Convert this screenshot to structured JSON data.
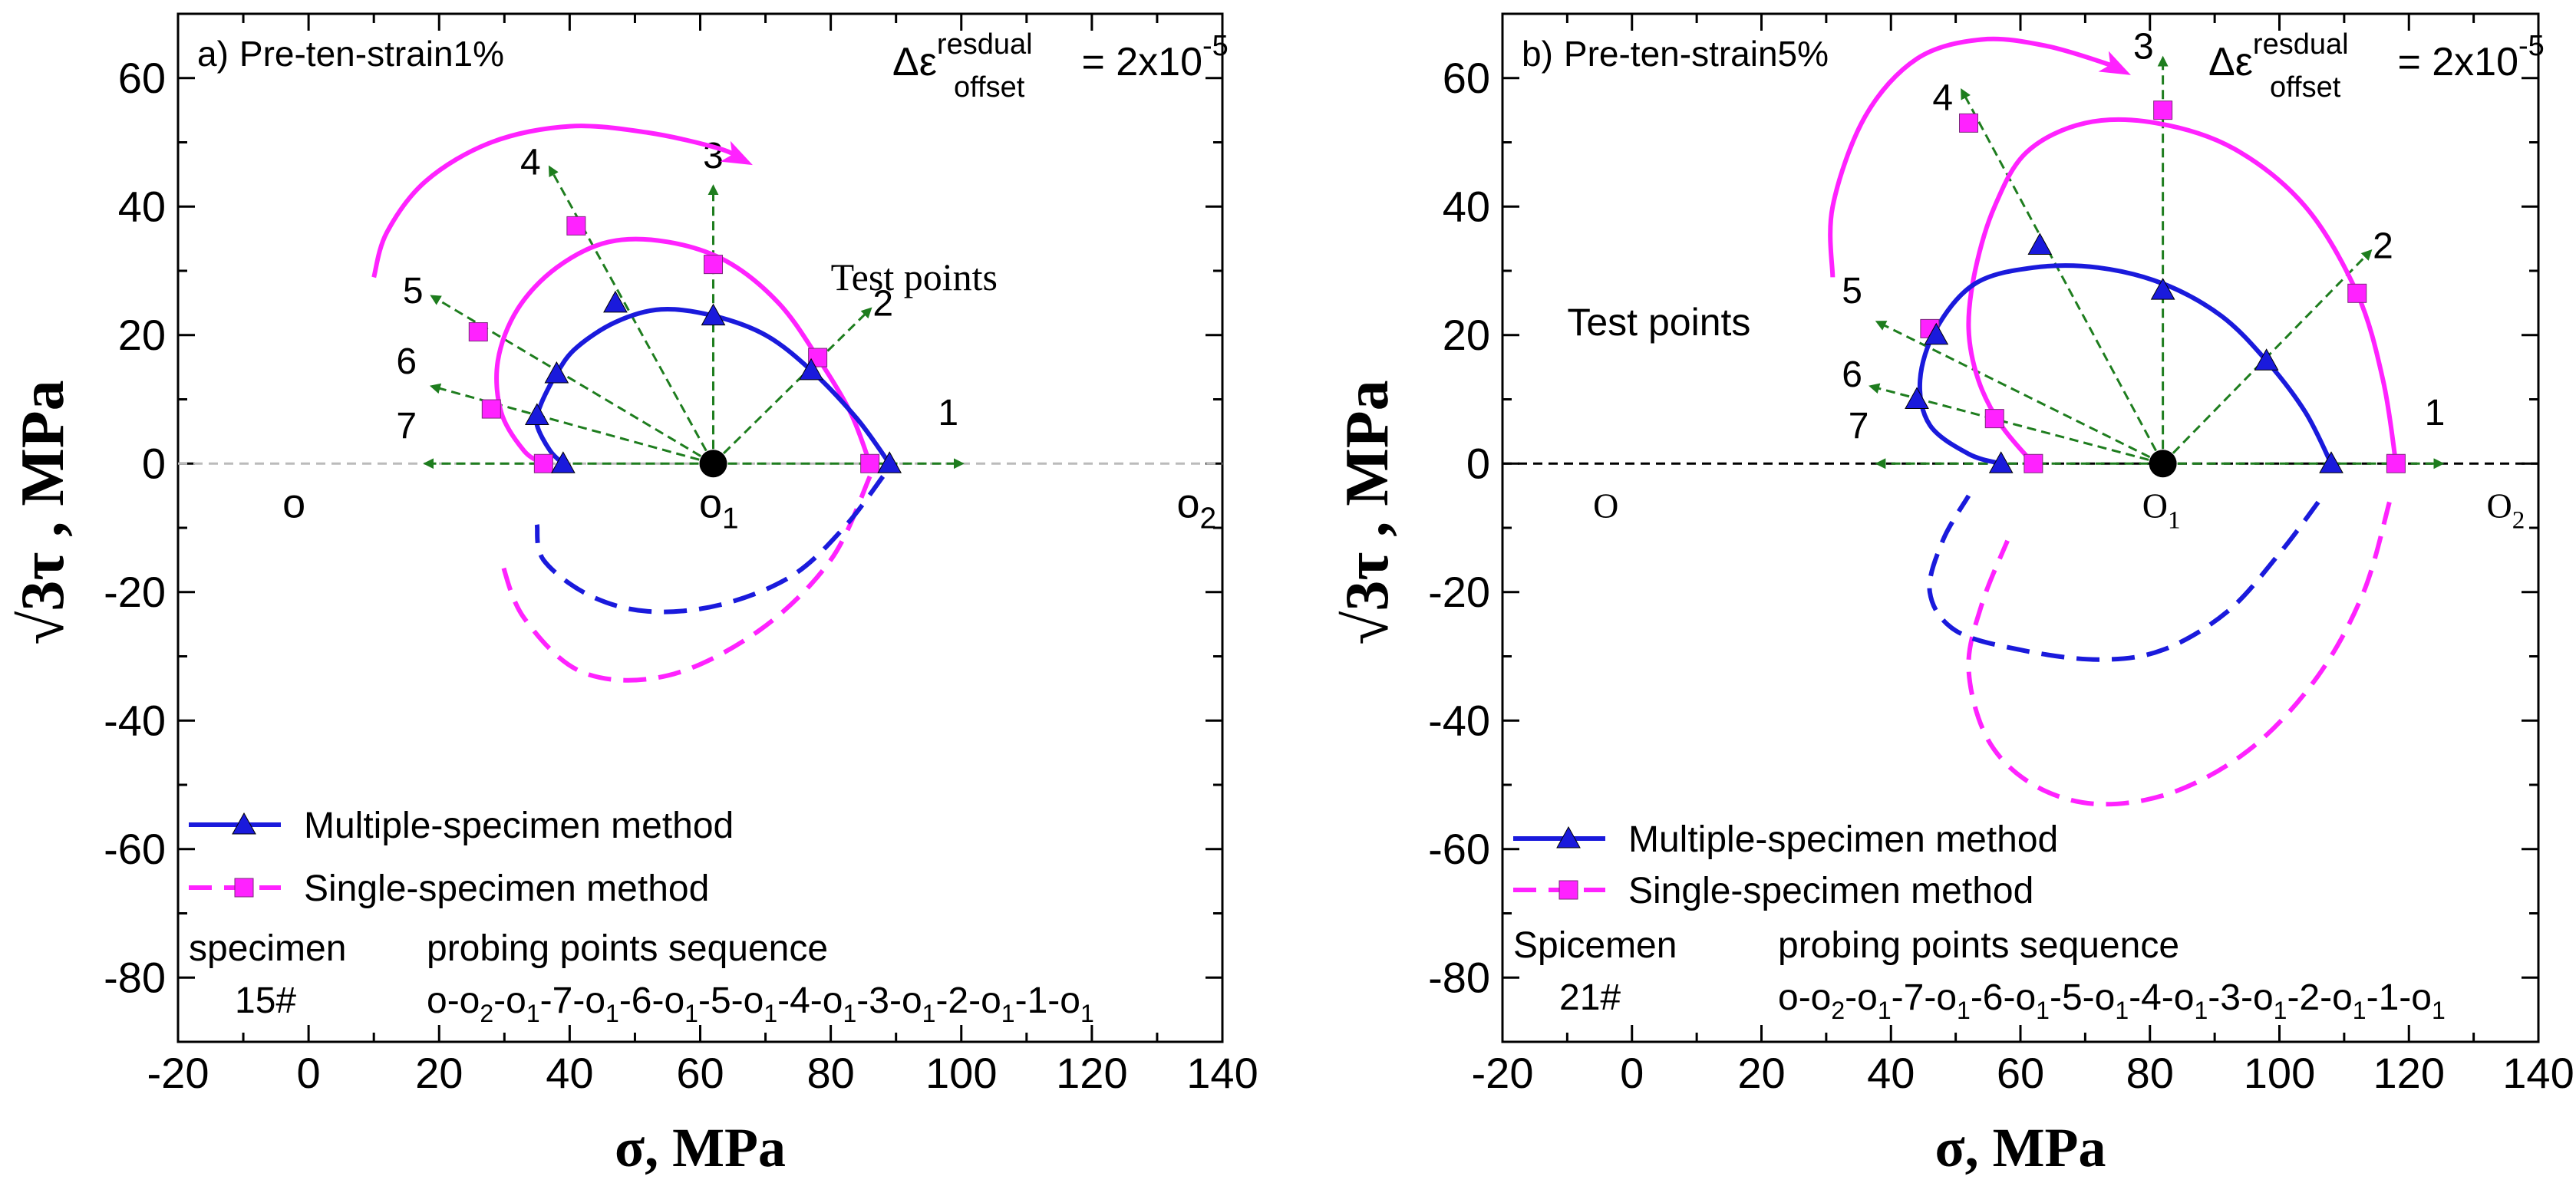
{
  "colors": {
    "multiple": "#1a1adc",
    "single": "#ff22ff",
    "probe": "#1e7d1e",
    "zero_line_a": "#bbbbbb",
    "zero_line_b": "#000000",
    "center": "#000000"
  },
  "chart_data": [
    {
      "type": "scatter",
      "panel_label": "a)",
      "title": "Pre-ten-strain1%",
      "offset_label": {
        "delta": "Δε",
        "sup": "resdual",
        "sub": "offset",
        "value": " = 2x10",
        "exp": "-5"
      },
      "xlabel": "σ,  MPa",
      "ylabel": {
        "root": "√",
        "main": "3τ",
        "unit": " , MPa"
      },
      "xlim": [
        -20,
        140
      ],
      "ylim": [
        -90,
        70
      ],
      "xticks": [
        -20,
        0,
        20,
        40,
        60,
        80,
        100,
        120,
        140
      ],
      "yticks": [
        -80,
        -60,
        -40,
        -20,
        0,
        20,
        40,
        60
      ],
      "x_tick_labels": [
        "-20",
        "0",
        "20",
        "40",
        "60",
        "80",
        "100",
        "120",
        "140"
      ],
      "y_tick_labels": [
        "-80",
        "-60",
        "-40",
        "-20",
        "0",
        "20",
        "40",
        "60"
      ],
      "center": [
        62,
        0
      ],
      "points_text": "Test points",
      "text_points_label_pos": [
        80,
        27
      ],
      "O_labels": {
        "o": "o",
        "o1": "o",
        "o1_sub": "1",
        "o2": "o",
        "o2_sub": "2"
      },
      "O_positions": {
        "o": [
          -4,
          -6
        ],
        "o1": [
          61,
          -6
        ],
        "o2": [
          133,
          -6
        ]
      },
      "probe_directions": [
        {
          "label": "1",
          "end": [
            100,
            0
          ],
          "label_pos": [
            98,
            6
          ]
        },
        {
          "label": "2",
          "end": [
            86,
            24
          ],
          "label_pos": [
            88,
            23
          ]
        },
        {
          "label": "3",
          "end": [
            62,
            43
          ],
          "label_pos": [
            62,
            46
          ]
        },
        {
          "label": "4",
          "end": [
            37,
            46
          ],
          "label_pos": [
            34,
            45
          ]
        },
        {
          "label": "5",
          "end": [
            19,
            26
          ],
          "label_pos": [
            16,
            25
          ]
        },
        {
          "label": "6",
          "end": [
            19,
            12
          ],
          "label_pos": [
            15,
            14
          ]
        },
        {
          "label": "7",
          "end": [
            18,
            0
          ],
          "label_pos": [
            15,
            4
          ]
        }
      ],
      "series": [
        {
          "name": "Multiple-specimen method",
          "marker": "triangle",
          "points": [
            [
              89,
              0
            ],
            [
              77,
              14.5
            ],
            [
              62,
              23
            ],
            [
              47,
              25
            ],
            [
              38,
              14
            ],
            [
              35,
              7.5
            ],
            [
              39,
              0
            ]
          ],
          "curve": [
            [
              89,
              0
            ],
            [
              84,
              7
            ],
            [
              77,
              14.5
            ],
            [
              70,
              20
            ],
            [
              62,
              23
            ],
            [
              54,
              24
            ],
            [
              47,
              22
            ],
            [
              41,
              18
            ],
            [
              38,
              14
            ],
            [
              35.5,
              9
            ],
            [
              35,
              6
            ],
            [
              37,
              2
            ],
            [
              39,
              0
            ]
          ],
          "curve_neg": [
            [
              88,
              -2
            ],
            [
              82,
              -10
            ],
            [
              74,
              -17.5
            ],
            [
              63,
              -22
            ],
            [
              52,
              -23
            ],
            [
              43,
              -20.5
            ],
            [
              36,
              -15
            ],
            [
              35,
              -9.5
            ]
          ]
        },
        {
          "name": "Single-specimen method",
          "marker": "square",
          "points": [
            [
              86,
              0
            ],
            [
              78,
              16.5
            ],
            [
              62,
              31
            ],
            [
              41,
              37
            ],
            [
              26,
              20.5
            ],
            [
              28,
              8.5
            ],
            [
              36,
              0
            ]
          ],
          "curve": [
            [
              86,
              0
            ],
            [
              83,
              8
            ],
            [
              78,
              16.5
            ],
            [
              72,
              25
            ],
            [
              64,
              31.5
            ],
            [
              55,
              34.5
            ],
            [
              46,
              34.5
            ],
            [
              38,
              30.5
            ],
            [
              32,
              24
            ],
            [
              29,
              16
            ],
            [
              29.5,
              8
            ],
            [
              33,
              2
            ],
            [
              36,
              0
            ]
          ],
          "arc": [
            [
              10,
              29
            ],
            [
              12,
              36
            ],
            [
              18,
              44
            ],
            [
              28,
              50
            ],
            [
              40,
              52.5
            ],
            [
              52,
              51.5
            ],
            [
              63,
              49
            ],
            [
              67,
              47
            ]
          ],
          "curve_neg": [
            [
              86,
              -2
            ],
            [
              80,
              -15
            ],
            [
              69,
              -26
            ],
            [
              55,
              -33
            ],
            [
              42,
              -32.5
            ],
            [
              33,
              -24
            ],
            [
              29.5,
              -15
            ]
          ]
        }
      ],
      "legend": {
        "position": "bottom-left"
      },
      "table": {
        "col1_header": "specimen",
        "col2_header": "probing points sequence",
        "specimen_id": "15#",
        "sequence": [
          "o-o",
          "2",
          "-o",
          "1",
          "-7-o",
          "1",
          "-6-o",
          "1",
          "-5-o",
          "1",
          "-4-o",
          "1",
          "-3-o",
          "1",
          "-2-o",
          "1",
          "-1-o",
          "1"
        ]
      }
    },
    {
      "type": "scatter",
      "panel_label": "b)",
      "title": "Pre-ten-strain5%",
      "offset_label": {
        "delta": "Δε",
        "sup": "resdual",
        "sub": "offset",
        "value": " = 2x10",
        "exp": "-5"
      },
      "xlabel": "σ,  MPa",
      "ylabel": {
        "root": "√",
        "main": "3τ",
        "unit": " , MPa"
      },
      "xlim": [
        -20,
        140
      ],
      "ylim": [
        -90,
        70
      ],
      "xticks": [
        -20,
        0,
        20,
        40,
        60,
        80,
        100,
        120,
        140
      ],
      "yticks": [
        -80,
        -60,
        -40,
        -20,
        0,
        20,
        40,
        60
      ],
      "x_tick_labels": [
        "-20",
        "0",
        "20",
        "40",
        "60",
        "80",
        "100",
        "120",
        "140"
      ],
      "y_tick_labels": [
        "-80",
        "-60",
        "-40",
        "-20",
        "0",
        "20",
        "40",
        "60"
      ],
      "center": [
        82,
        0
      ],
      "points_text": "Test points",
      "text_points_label_pos": [
        -10,
        20
      ],
      "O_labels": {
        "o": "O",
        "o1": "O",
        "o1_sub": "1",
        "o2": "O",
        "o2_sub": "2"
      },
      "O_positions": {
        "o": [
          -6,
          -6
        ],
        "o1": [
          80,
          -6
        ],
        "o2": [
          132,
          -6
        ]
      },
      "probe_directions": [
        {
          "label": "1",
          "end": [
            125,
            0
          ],
          "label_pos": [
            124,
            6
          ]
        },
        {
          "label": "2",
          "end": [
            114,
            33
          ],
          "label_pos": [
            116,
            32
          ]
        },
        {
          "label": "3",
          "end": [
            82,
            63
          ],
          "label_pos": [
            79,
            63
          ]
        },
        {
          "label": "4",
          "end": [
            51,
            58
          ],
          "label_pos": [
            48,
            55
          ]
        },
        {
          "label": "5",
          "end": [
            38,
            22
          ],
          "label_pos": [
            34,
            25
          ]
        },
        {
          "label": "6",
          "end": [
            37,
            12
          ],
          "label_pos": [
            34,
            12
          ]
        },
        {
          "label": "7",
          "end": [
            38,
            0
          ],
          "label_pos": [
            35,
            4
          ]
        }
      ],
      "series": [
        {
          "name": "Multiple-specimen method",
          "marker": "triangle",
          "points": [
            [
              108,
              0
            ],
            [
              98,
              16
            ],
            [
              82,
              27
            ],
            [
              63,
              34
            ],
            [
              47,
              20
            ],
            [
              44,
              10
            ],
            [
              57,
              0
            ]
          ],
          "curve": [
            [
              108,
              0
            ],
            [
              104,
              8
            ],
            [
              98,
              16
            ],
            [
              91,
              23
            ],
            [
              82,
              28
            ],
            [
              72,
              30.5
            ],
            [
              62,
              30.5
            ],
            [
              53,
              28
            ],
            [
              47,
              21
            ],
            [
              44.5,
              13
            ],
            [
              46,
              6
            ],
            [
              52,
              1.5
            ],
            [
              57,
              0
            ]
          ],
          "curve_neg": [
            [
              106,
              -6
            ],
            [
              100,
              -14
            ],
            [
              92,
              -23
            ],
            [
              82,
              -29
            ],
            [
              72,
              -30.5
            ],
            [
              60,
              -29
            ],
            [
              50,
              -26
            ],
            [
              46,
              -20
            ],
            [
              48,
              -12
            ],
            [
              52,
              -5
            ]
          ]
        },
        {
          "name": "Single-specimen method",
          "marker": "square",
          "points": [
            [
              118,
              0
            ],
            [
              112,
              26.5
            ],
            [
              82,
              55
            ],
            [
              52,
              53
            ],
            [
              46,
              21
            ],
            [
              56,
              7
            ],
            [
              62,
              0
            ]
          ],
          "curve": [
            [
              118,
              0
            ],
            [
              116,
              13
            ],
            [
              112,
              26.5
            ],
            [
              104,
              40
            ],
            [
              93,
              49
            ],
            [
              81,
              53
            ],
            [
              70,
              53
            ],
            [
              61,
              48.5
            ],
            [
              56,
              40
            ],
            [
              53,
              30
            ],
            [
              52,
              21
            ],
            [
              53.5,
              13
            ],
            [
              57,
              6
            ],
            [
              62,
              0
            ]
          ],
          "arc": [
            [
              31,
              29
            ],
            [
              31,
              40
            ],
            [
              36,
              54
            ],
            [
              44,
              63
            ],
            [
              54,
              66
            ],
            [
              64,
              65
            ],
            [
              74,
              62
            ],
            [
              76,
              61
            ]
          ],
          "curve_neg": [
            [
              117,
              -6
            ],
            [
              113,
              -20
            ],
            [
              106,
              -33
            ],
            [
              96,
              -44
            ],
            [
              84,
              -51
            ],
            [
              72,
              -53
            ],
            [
              62,
              -50
            ],
            [
              55,
              -43
            ],
            [
              52,
              -32
            ],
            [
              54,
              -22
            ],
            [
              58,
              -12
            ]
          ]
        }
      ],
      "legend": {
        "position": "bottom-left"
      },
      "table": {
        "col1_header": "Spicemen",
        "col2_header": "probing points sequence",
        "specimen_id": "21#",
        "sequence": [
          "o-o",
          "2",
          "-o",
          "1",
          "-7-o",
          "1",
          "-6-o",
          "1",
          "-5-o",
          "1",
          "-4-o",
          "1",
          "-3-o",
          "1",
          "-2-o",
          "1",
          "-1-o",
          "1"
        ]
      }
    }
  ]
}
